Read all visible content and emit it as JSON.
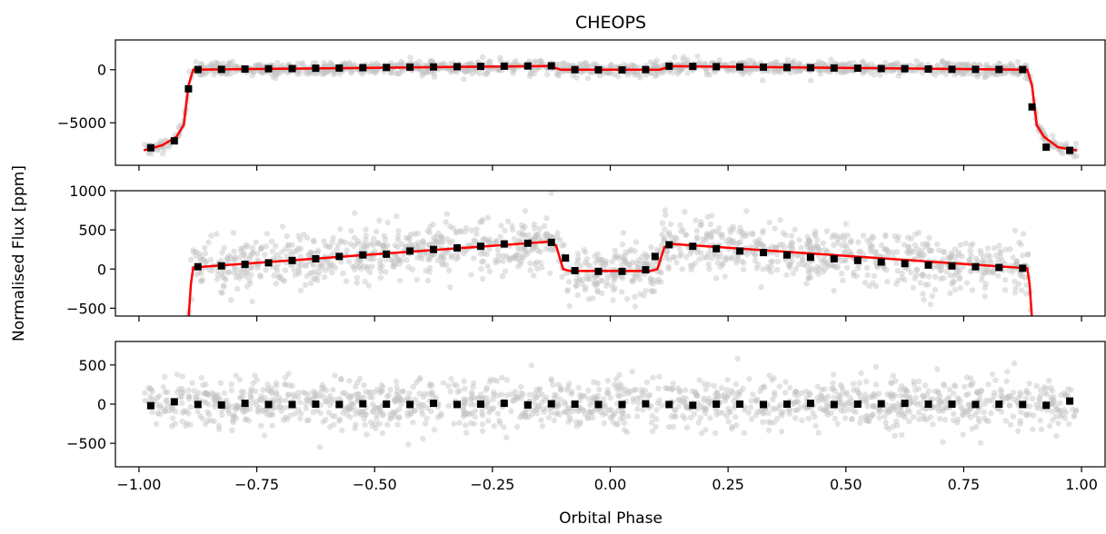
{
  "chart_data": {
    "type": "scatter",
    "title": "CHEOPS",
    "xlabel": "Orbital Phase",
    "ylabel": "Normalised Flux [ppm]",
    "xlim": [
      -1.05,
      1.05
    ],
    "xticks": [
      -1.0,
      -0.75,
      -0.5,
      -0.25,
      0.0,
      0.25,
      0.5,
      0.75,
      1.0
    ],
    "xtick_labels": [
      "−1.00",
      "−0.75",
      "−0.50",
      "−0.25",
      "0.00",
      "0.25",
      "0.50",
      "0.75",
      "1.00"
    ],
    "colors": {
      "raw": "#c0c0c0",
      "binned": "#000000",
      "model": "#ff0000"
    },
    "panels": [
      {
        "name": "full-model",
        "ylim": [
          -9000,
          2800
        ],
        "yticks": [
          0,
          -5000
        ],
        "ytick_labels": [
          "0",
          "−5000"
        ],
        "noise": 300,
        "binned": [
          {
            "x": -0.975,
            "y": -7350
          },
          {
            "x": -0.925,
            "y": -6700
          },
          {
            "x": -0.895,
            "y": -1800
          },
          {
            "x": -0.875,
            "y": 10
          },
          {
            "x": -0.825,
            "y": 30
          },
          {
            "x": -0.775,
            "y": 60
          },
          {
            "x": -0.725,
            "y": 90
          },
          {
            "x": -0.675,
            "y": 110
          },
          {
            "x": -0.625,
            "y": 140
          },
          {
            "x": -0.575,
            "y": 160
          },
          {
            "x": -0.525,
            "y": 190
          },
          {
            "x": -0.475,
            "y": 210
          },
          {
            "x": -0.425,
            "y": 240
          },
          {
            "x": -0.375,
            "y": 260
          },
          {
            "x": -0.325,
            "y": 290
          },
          {
            "x": -0.275,
            "y": 310
          },
          {
            "x": -0.225,
            "y": 330
          },
          {
            "x": -0.175,
            "y": 345
          },
          {
            "x": -0.125,
            "y": 360
          },
          {
            "x": -0.075,
            "y": 0
          },
          {
            "x": -0.025,
            "y": -10
          },
          {
            "x": 0.025,
            "y": -20
          },
          {
            "x": 0.075,
            "y": 10
          },
          {
            "x": 0.125,
            "y": 330
          },
          {
            "x": 0.175,
            "y": 310
          },
          {
            "x": 0.225,
            "y": 290
          },
          {
            "x": 0.275,
            "y": 260
          },
          {
            "x": 0.325,
            "y": 240
          },
          {
            "x": 0.375,
            "y": 210
          },
          {
            "x": 0.425,
            "y": 190
          },
          {
            "x": 0.475,
            "y": 160
          },
          {
            "x": 0.525,
            "y": 140
          },
          {
            "x": 0.575,
            "y": 110
          },
          {
            "x": 0.625,
            "y": 90
          },
          {
            "x": 0.675,
            "y": 60
          },
          {
            "x": 0.725,
            "y": 40
          },
          {
            "x": 0.775,
            "y": 30
          },
          {
            "x": 0.825,
            "y": 20
          },
          {
            "x": 0.875,
            "y": 10
          },
          {
            "x": 0.895,
            "y": -3500
          },
          {
            "x": 0.925,
            "y": -7300
          },
          {
            "x": 0.975,
            "y": -7600
          }
        ],
        "model": [
          {
            "x": -0.99,
            "y": -7600
          },
          {
            "x": -0.95,
            "y": -7100
          },
          {
            "x": -0.92,
            "y": -6300
          },
          {
            "x": -0.905,
            "y": -5200
          },
          {
            "x": -0.895,
            "y": -1500
          },
          {
            "x": -0.885,
            "y": 0
          },
          {
            "x": -0.13,
            "y": 350
          },
          {
            "x": -0.105,
            "y": 0
          },
          {
            "x": 0.105,
            "y": 0
          },
          {
            "x": 0.13,
            "y": 330
          },
          {
            "x": 0.885,
            "y": 0
          },
          {
            "x": 0.895,
            "y": -1500
          },
          {
            "x": 0.905,
            "y": -5200
          },
          {
            "x": 0.92,
            "y": -6300
          },
          {
            "x": 0.95,
            "y": -7300
          },
          {
            "x": 0.99,
            "y": -7600
          }
        ]
      },
      {
        "name": "zoom",
        "ylim": [
          -600,
          1000
        ],
        "yticks": [
          1000,
          500,
          0,
          -500
        ],
        "ytick_labels": [
          "1000",
          "500",
          "0",
          "−500"
        ],
        "noise": 170,
        "binned": [
          {
            "x": -0.875,
            "y": 30
          },
          {
            "x": -0.825,
            "y": 40
          },
          {
            "x": -0.775,
            "y": 60
          },
          {
            "x": -0.725,
            "y": 80
          },
          {
            "x": -0.675,
            "y": 110
          },
          {
            "x": -0.625,
            "y": 130
          },
          {
            "x": -0.575,
            "y": 160
          },
          {
            "x": -0.525,
            "y": 180
          },
          {
            "x": -0.475,
            "y": 190
          },
          {
            "x": -0.425,
            "y": 230
          },
          {
            "x": -0.375,
            "y": 250
          },
          {
            "x": -0.325,
            "y": 270
          },
          {
            "x": -0.275,
            "y": 290
          },
          {
            "x": -0.225,
            "y": 320
          },
          {
            "x": -0.175,
            "y": 330
          },
          {
            "x": -0.125,
            "y": 340
          },
          {
            "x": -0.095,
            "y": 140
          },
          {
            "x": -0.075,
            "y": -20
          },
          {
            "x": -0.025,
            "y": -30
          },
          {
            "x": 0.025,
            "y": -30
          },
          {
            "x": 0.075,
            "y": -10
          },
          {
            "x": 0.095,
            "y": 160
          },
          {
            "x": 0.125,
            "y": 310
          },
          {
            "x": 0.175,
            "y": 290
          },
          {
            "x": 0.225,
            "y": 260
          },
          {
            "x": 0.275,
            "y": 230
          },
          {
            "x": 0.325,
            "y": 210
          },
          {
            "x": 0.375,
            "y": 180
          },
          {
            "x": 0.425,
            "y": 150
          },
          {
            "x": 0.475,
            "y": 130
          },
          {
            "x": 0.525,
            "y": 110
          },
          {
            "x": 0.575,
            "y": 90
          },
          {
            "x": 0.625,
            "y": 70
          },
          {
            "x": 0.675,
            "y": 50
          },
          {
            "x": 0.725,
            "y": 40
          },
          {
            "x": 0.775,
            "y": 30
          },
          {
            "x": 0.825,
            "y": 20
          },
          {
            "x": 0.875,
            "y": 10
          }
        ],
        "model": [
          {
            "x": -0.895,
            "y": -650
          },
          {
            "x": -0.89,
            "y": -200
          },
          {
            "x": -0.885,
            "y": 20
          },
          {
            "x": -0.13,
            "y": 350
          },
          {
            "x": -0.115,
            "y": 300
          },
          {
            "x": -0.1,
            "y": 0
          },
          {
            "x": -0.085,
            "y": -25
          },
          {
            "x": 0.085,
            "y": -25
          },
          {
            "x": 0.1,
            "y": 0
          },
          {
            "x": 0.115,
            "y": 280
          },
          {
            "x": 0.13,
            "y": 320
          },
          {
            "x": 0.885,
            "y": 10
          },
          {
            "x": 0.89,
            "y": -200
          },
          {
            "x": 0.895,
            "y": -650
          }
        ]
      },
      {
        "name": "residuals",
        "ylim": [
          -800,
          800
        ],
        "yticks": [
          500,
          0,
          -500
        ],
        "ytick_labels": [
          "500",
          "0",
          "−500"
        ],
        "noise": 160,
        "binned": [
          {
            "x": -0.975,
            "y": -20
          },
          {
            "x": -0.925,
            "y": 30
          },
          {
            "x": -0.875,
            "y": -5
          },
          {
            "x": -0.825,
            "y": -10
          },
          {
            "x": -0.775,
            "y": 10
          },
          {
            "x": -0.725,
            "y": -5
          },
          {
            "x": -0.675,
            "y": -5
          },
          {
            "x": -0.625,
            "y": 0
          },
          {
            "x": -0.575,
            "y": -5
          },
          {
            "x": -0.525,
            "y": 5
          },
          {
            "x": -0.475,
            "y": 0
          },
          {
            "x": -0.425,
            "y": -5
          },
          {
            "x": -0.375,
            "y": 10
          },
          {
            "x": -0.325,
            "y": -5
          },
          {
            "x": -0.275,
            "y": 0
          },
          {
            "x": -0.225,
            "y": 10
          },
          {
            "x": -0.175,
            "y": -10
          },
          {
            "x": -0.125,
            "y": 5
          },
          {
            "x": -0.075,
            "y": 0
          },
          {
            "x": -0.025,
            "y": -5
          },
          {
            "x": 0.025,
            "y": -5
          },
          {
            "x": 0.075,
            "y": 5
          },
          {
            "x": 0.125,
            "y": -5
          },
          {
            "x": 0.175,
            "y": -15
          },
          {
            "x": 0.225,
            "y": 0
          },
          {
            "x": 0.275,
            "y": 0
          },
          {
            "x": 0.325,
            "y": -5
          },
          {
            "x": 0.375,
            "y": 0
          },
          {
            "x": 0.425,
            "y": 10
          },
          {
            "x": 0.475,
            "y": -5
          },
          {
            "x": 0.525,
            "y": 0
          },
          {
            "x": 0.575,
            "y": 5
          },
          {
            "x": 0.625,
            "y": 10
          },
          {
            "x": 0.675,
            "y": 0
          },
          {
            "x": 0.725,
            "y": 0
          },
          {
            "x": 0.775,
            "y": -5
          },
          {
            "x": 0.825,
            "y": 0
          },
          {
            "x": 0.875,
            "y": -5
          },
          {
            "x": 0.925,
            "y": -15
          },
          {
            "x": 0.975,
            "y": 40
          }
        ],
        "model": []
      }
    ]
  }
}
